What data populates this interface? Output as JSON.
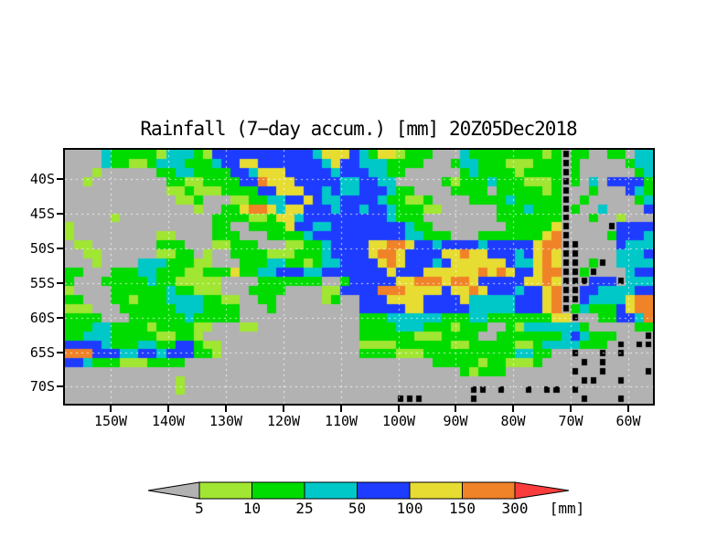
{
  "title": "Rainfall (7−day accum.) [mm] 20Z05Dec2018",
  "map": {
    "lat_labels": [
      "40S",
      "45S",
      "50S",
      "55S",
      "60S",
      "65S",
      "70S"
    ],
    "lon_labels": [
      "150W",
      "140W",
      "130W",
      "120W",
      "110W",
      "100W",
      "90W",
      "80W",
      "70W",
      "60W"
    ]
  },
  "colorbar": {
    "labels": [
      "5",
      "10",
      "25",
      "50",
      "100",
      "150",
      "300"
    ],
    "unit": "[mm]",
    "segment_colors": [
      "#a0e632",
      "#00dc00",
      "#00c8c8",
      "#1e3cff",
      "#e6dc32",
      "#f08228"
    ],
    "arrow_left_color": "#b2b2b2",
    "arrow_right_color": "#fa3c3c"
  },
  "chart_data": {
    "type": "heatmap",
    "title": "Rainfall (7−day accum.) [mm] 20Z05Dec2018",
    "variable": "7-day accumulated rainfall",
    "unit": "mm",
    "lat_ticks": [
      "40S",
      "45S",
      "50S",
      "55S",
      "60S",
      "65S",
      "70S"
    ],
    "lon_ticks": [
      "150W",
      "140W",
      "130W",
      "120W",
      "110W",
      "100W",
      "90W",
      "80W",
      "70W",
      "60W"
    ],
    "colorbar_thresholds": [
      5,
      10,
      25,
      50,
      100,
      150,
      300
    ],
    "colorbar_colors": {
      "below_5": "#b2b2b2",
      "5_10": "#a0e632",
      "10_25": "#00dc00",
      "25_50": "#00c8c8",
      "50_100": "#1e3cff",
      "100_150": "#e6dc32",
      "150_300": "#f08228",
      "above_300": "#fa3c3c"
    },
    "grid": {
      "cols": 64,
      "rows": 28,
      "cell_legend": {
        ".": "<5 mm",
        "l": "5-10 mm",
        "g": "10-25 mm",
        "c": "25-50 mm",
        "b": "50-100 mm",
        "y": "100-150 mm",
        "o": "150-300 mm",
        "r": ">300 mm",
        "k": "coastline"
      },
      "palette": {
        ".": "#b2b2b2",
        "l": "#a0e632",
        "g": "#00dc00",
        "c": "#00c8c8",
        "b": "#1e3cff",
        "y": "#e6dc32",
        "o": "#f08228",
        "r": "#fa3c3c",
        "k": "#000000"
      },
      "rows_data": [
        "....cggggglcccglbbbbbbbbbbbcyyybcgyylggg...cgggggggglgkgg..gg.cc",
        "....cggllgcccgggcbbyybbbbbbbcybbcccgggg...gccggglllgggkg.....gcc",
        "...l......ggccggggbbcyyybbbbbcbbbccgg......gcgggglggggkg......gc",
        "..l........ggllggggbboyyybbbbbccbbcc.....glgggcggglllgkg.c.bbbbg",
        "...........llglllggggbbyyybbcbccbbbcgg....gggg.ggggglgk..g...bcg",
        "............llg...llggccbbybccbbbbcggllg....ggggcgggggk.g.....gc",
        "..............l..ggyooycyybbbcbbcbbcgggll......gggcgggkg..c....b",
        ".....l..........ggggllgyycbbbbbbbbbcggg........gggggggk..g..l...",
        "l...............gg..ggggybbccbbbbbbbbcgg........gggggyk....kbbbb",
        "l.........ll....ggg...ggggcbbbbbbbbbbccggg...gggggggyok....gbbbc",
        ".ll.......ggg...llggg...llggcbbbbyyooybbcbbbbcbbbbbyookk....bccc",
        "..ll......llgg.l..gggglllgggcbbbbyooybbbbyyoyybbbcbyoykk....cccb",
        "...l....cccgggll...gggccgglgccbbbbyoybbbcbyyyyyybccyoykk.gk.cccc",
        "gg...gggccgggllgggyggccbbbccbbbbbbbybbbyyyyyyoyoybbyookkgk...cbb",
        "g...gggggcgglllll....ggggggg..gbbbbbyyoooyooybbbbbyyoykkkbbbkccc",
        "l....ggggggcgglll...gggg....llbbbboooyyyybyyoybbbcbbyokkbbccccbb",
        "gg...gglgggccccggll..gg.....lg..bbbyyyybbbbycccccbbbyokkbccccyoo",
        "lll...ggggggcccgggg...g.........bbbbbyybbbbbcccccbbbyokgcgggbyoo",
        "gggg...ggggggcggggg.............gggccccccgggccgggggggyyk..ggbbco",
        "gggccgggglggggll...ll...........ggggcccggglggg..glccccccg.....gg",
        "ggcccgggggllggl.................gggggglllgggg..gggggggcbcggg...k",
        "bbbbcgggccggbbgll...............llllggggggllgggggllgccccggg.k.kk",
        "ooobbbccbbcbbbggl...............   gggglllggggggggggccgg..k..k.k",
        "bbcggglllgggg...........................ggggglgglllg....k.k.....",
        "...........................................glggg.......k..k....k",
        "............l...........................................kk..k...",
        "............l...............................kk.k..k.kk.k........k.......",
        "....................................kkk.....k...........k...k..."
      ]
    }
  }
}
